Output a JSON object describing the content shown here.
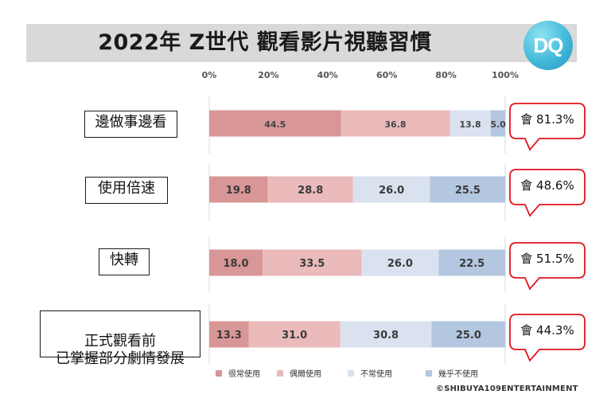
{
  "header": {
    "title": "2022年 Z世代 觀看影片視聽習慣",
    "logo_text": "DQ"
  },
  "chart_data": {
    "type": "bar",
    "stacked": true,
    "orientation": "horizontal",
    "x_ticks": [
      "0%",
      "20%",
      "40%",
      "60%",
      "80%",
      "100%"
    ],
    "xlim": [
      0,
      100
    ],
    "categories": [
      "邊做事邊看",
      "使用倍速",
      "快轉",
      "正式觀看前\n已掌握部分劇情發展"
    ],
    "series": [
      {
        "name": "很常使用",
        "values": [
          44.5,
          19.8,
          18.0,
          13.3
        ],
        "color": "#d99696",
        "labels": [
          "44.5",
          "19.8",
          "18.0",
          "13.3"
        ]
      },
      {
        "name": "偶爾使用",
        "values": [
          36.8,
          28.8,
          33.5,
          31.0
        ],
        "color": "#ebbaba",
        "labels": [
          "36.8",
          "28.8",
          "33.5",
          "31.0"
        ]
      },
      {
        "name": "不常使用",
        "values": [
          13.8,
          26.0,
          26.0,
          30.8
        ],
        "color": "#d9e2ee",
        "labels": [
          "13.8",
          "26.0",
          "26.0",
          "30.8"
        ]
      },
      {
        "name": "幾乎不使用",
        "values": [
          5.0,
          25.5,
          22.5,
          25.0
        ],
        "color": "#b4c7e0",
        "labels": [
          "5.0",
          "25.5",
          "22.5",
          "25.0"
        ]
      }
    ],
    "callouts": [
      "會 81.3%",
      "會 48.6%",
      "會 51.5%",
      "會 44.3%"
    ],
    "legend_position": "bottom",
    "grid": false
  },
  "footer": {
    "copyright": "©SHIBUYA109ENTERTAINMENT"
  }
}
